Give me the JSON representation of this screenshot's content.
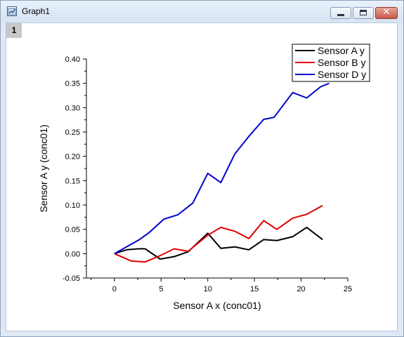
{
  "window": {
    "title": "Graph1",
    "layer_label": "1",
    "close_glyph": "✕"
  },
  "chart_data": {
    "type": "line",
    "xlabel": "Sensor A x (conc01)",
    "ylabel": "Sensor A y (conc01)",
    "xlim": [
      -3,
      25
    ],
    "ylim": [
      -0.05,
      0.4
    ],
    "xticks": [
      0,
      5,
      10,
      15,
      20,
      25
    ],
    "yticks": [
      -0.05,
      0.0,
      0.05,
      0.1,
      0.15,
      0.2,
      0.25,
      0.3,
      0.35,
      0.4
    ],
    "ytick_labels": [
      "-0.05",
      "0.00",
      "0.05",
      "0.10",
      "0.15",
      "0.20",
      "0.25",
      "0.30",
      "0.35",
      "0.40"
    ],
    "xtick_labels": [
      "0",
      "5",
      "10",
      "15",
      "20",
      "25"
    ],
    "grid": false,
    "legend_position": "top-right",
    "series": [
      {
        "name": "Sensor A y",
        "color": "#000000",
        "x": [
          0,
          1.3,
          2.6,
          3.3,
          4.9,
          6.4,
          7.9,
          10,
          11.4,
          12.9,
          14.4,
          16,
          17.4,
          19.1,
          20.6,
          22.3
        ],
        "y": [
          0.0,
          0.008,
          0.01,
          0.01,
          -0.011,
          -0.006,
          0.004,
          0.042,
          0.011,
          0.014,
          0.008,
          0.029,
          0.027,
          0.035,
          0.054,
          0.029
        ]
      },
      {
        "name": "Sensor B y",
        "color": "#e00000",
        "x": [
          0,
          1.8,
          3.3,
          4.9,
          6.4,
          7.9,
          10,
          11.4,
          12.9,
          14.4,
          16,
          17.4,
          19.1,
          20.6,
          22.3
        ],
        "y": [
          0.0,
          -0.015,
          -0.017,
          -0.004,
          0.01,
          0.005,
          0.038,
          0.054,
          0.046,
          0.031,
          0.068,
          0.05,
          0.073,
          0.081,
          0.099
        ]
      },
      {
        "name": "Sensor D y",
        "color": "#0000cc",
        "x": [
          0,
          2.6,
          3.7,
          5.3,
          6.8,
          8.4,
          10,
          11.4,
          12.9,
          14.4,
          16,
          17.1,
          19.1,
          20.6,
          22.1,
          23
        ],
        "y": [
          0.0,
          0.028,
          0.043,
          0.071,
          0.08,
          0.104,
          0.165,
          0.146,
          0.205,
          0.241,
          0.276,
          0.28,
          0.331,
          0.32,
          0.343,
          0.35
        ]
      }
    ]
  }
}
